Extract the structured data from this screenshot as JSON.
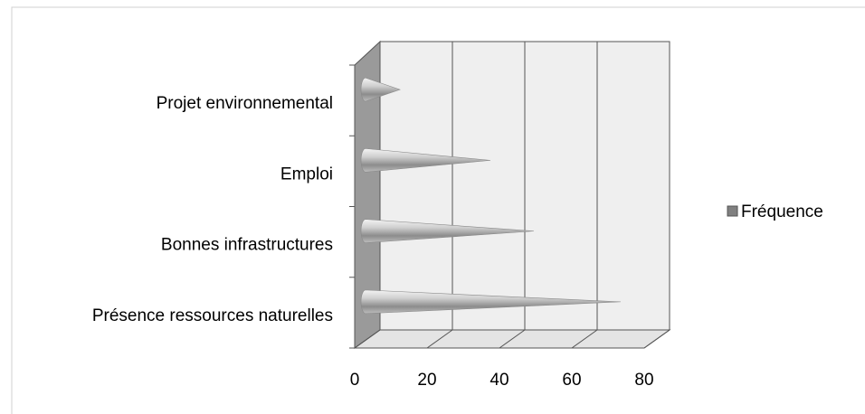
{
  "chart_data": {
    "type": "bar3d_cone",
    "orientation": "horizontal",
    "categories": [
      "Présence ressources naturelles",
      "Bonnes infrastructures",
      "Emploi",
      "Projet environnemental"
    ],
    "series": [
      {
        "name": "Fréquence",
        "color": "#808080",
        "values": [
          70,
          46,
          34,
          9
        ]
      }
    ],
    "xlim": [
      0,
      80
    ],
    "xticks": [
      0,
      20,
      40,
      60,
      80
    ],
    "grid": true,
    "legend": "right"
  }
}
